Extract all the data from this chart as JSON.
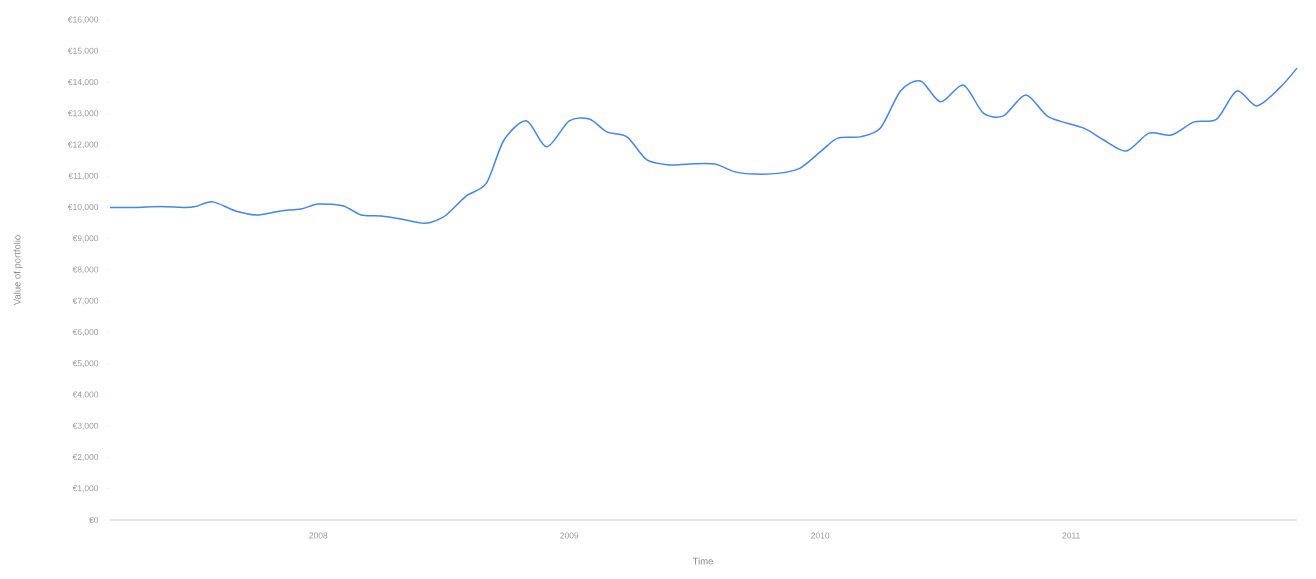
{
  "chart_data": {
    "type": "line",
    "xlabel": "Time",
    "ylabel": "Value of portfolio",
    "x": [
      2007.17,
      2007.27,
      2007.37,
      2007.47,
      2007.51,
      2007.58,
      2007.67,
      2007.76,
      2007.85,
      2007.93,
      2008.0,
      2008.1,
      2008.17,
      2008.25,
      2008.33,
      2008.41,
      2008.45,
      2008.51,
      2008.59,
      2008.67,
      2008.74,
      2008.83,
      2008.91,
      2009.0,
      2009.08,
      2009.15,
      2009.23,
      2009.31,
      2009.4,
      2009.48,
      2009.58,
      2009.66,
      2009.74,
      2009.84,
      2009.92,
      2010.0,
      2010.07,
      2010.16,
      2010.24,
      2010.32,
      2010.4,
      2010.48,
      2010.57,
      2010.65,
      2010.73,
      2010.82,
      2010.91,
      2011.05,
      2011.13,
      2011.22,
      2011.31,
      2011.4,
      2011.49,
      2011.58,
      2011.66,
      2011.74,
      2011.83,
      2011.9
    ],
    "series": [
      {
        "color": "#4285f4",
        "values": [
          10000,
          10000,
          10030,
          10000,
          10030,
          10180,
          9890,
          9760,
          9890,
          9950,
          10110,
          10050,
          9760,
          9730,
          9630,
          9500,
          9530,
          9760,
          10370,
          10780,
          12160,
          12770,
          11940,
          12770,
          12830,
          12420,
          12260,
          11520,
          11360,
          11390,
          11390,
          11140,
          11070,
          11100,
          11260,
          11780,
          12220,
          12260,
          12540,
          13730,
          14050,
          13380,
          13920,
          13020,
          12930,
          13600,
          12900,
          12540,
          12160,
          11810,
          12380,
          12320,
          12740,
          12830,
          13730,
          13250,
          13820,
          14460
        ]
      }
    ],
    "xlim": [
      2007.17,
      2011.9
    ],
    "xticks": [
      2008,
      2009,
      2010,
      2011
    ],
    "ylim": [
      0,
      16000
    ],
    "yticks": [
      {
        "value": 0,
        "label": "€0"
      },
      {
        "value": 1000,
        "label": "€1,000"
      },
      {
        "value": 2000,
        "label": "€2,000"
      },
      {
        "value": 3000,
        "label": "€3,000"
      },
      {
        "value": 4000,
        "label": "€4,000"
      },
      {
        "value": 5000,
        "label": "€5,000"
      },
      {
        "value": 6000,
        "label": "€6,000"
      },
      {
        "value": 7000,
        "label": "€7,000"
      },
      {
        "value": 8000,
        "label": "€8,000"
      },
      {
        "value": 9000,
        "label": "€9,000"
      },
      {
        "value": 10000,
        "label": "€10,000"
      },
      {
        "value": 11000,
        "label": "€11,000"
      },
      {
        "value": 12000,
        "label": "€12,000"
      },
      {
        "value": 13000,
        "label": "€13,000"
      },
      {
        "value": 14000,
        "label": "€14,000"
      },
      {
        "value": 15000,
        "label": "€15,000"
      },
      {
        "value": 16000,
        "label": "€16,000"
      }
    ],
    "grid": false,
    "marker": "none",
    "line_style": "solid"
  }
}
